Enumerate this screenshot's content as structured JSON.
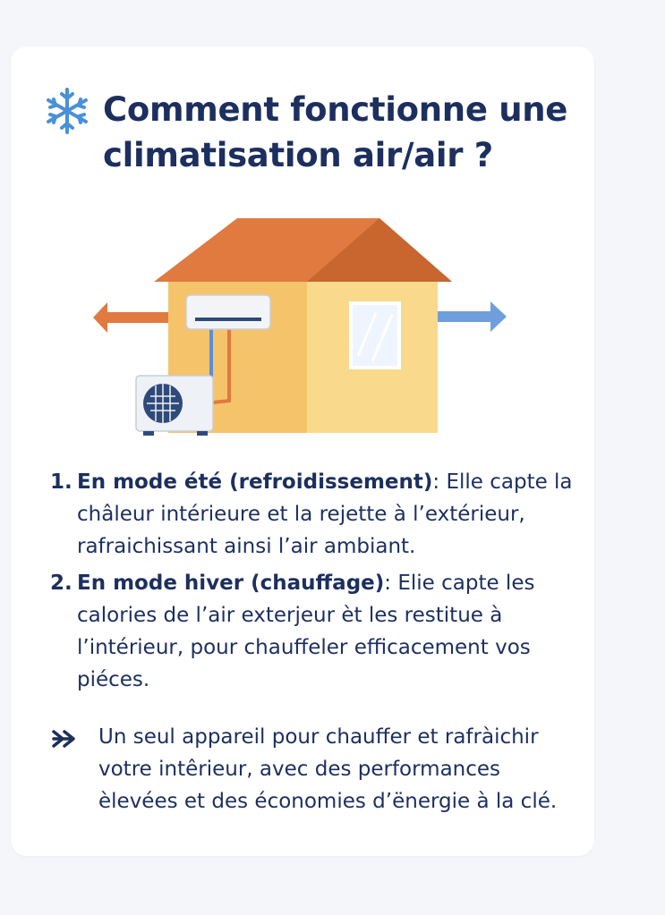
{
  "header": {
    "icon": "snowflake-icon",
    "title": "Comment fonctionne une climatisation air/air ?"
  },
  "illustration": {
    "subject": "house-with-air-conditioner",
    "colors": {
      "roof": "#e07a3f",
      "wall_left": "#f5c36a",
      "wall_right": "#f9d98c",
      "warm_arrow": "#e07a3f",
      "cool_arrow": "#6e9fdc",
      "indoor_unit": "#f2f4f7",
      "outdoor_unit": "#eef1f5",
      "fan": "#2e4a7a"
    }
  },
  "steps": [
    {
      "number": "1.",
      "mode": "En mode été (refroidissement)",
      "separator": ": ",
      "text": "Elle capte la châleur intérieure et la rejette à l’extérieur, rafraichissant ainsi l’air ambiant."
    },
    {
      "number": "2.",
      "mode": "En mode hiver (chauffage)",
      "separator": ":  ",
      "text": "Elie capte les calories de l’air exterjeur èt les restitue à l’intérieur, pour chauffeler efficacement vos piéces."
    }
  ],
  "callout": {
    "icon": "double-chevron-right-icon",
    "text": "Un seul appareil pour chauffer et rafràichir votre intêrieur, avec des performances èlevées et des économies d’ënergie à la clé."
  },
  "colors": {
    "text_primary": "#1c2f5e",
    "accent_blue": "#4a90d9",
    "card_background": "#ffffff",
    "page_background": "#f4f6fa"
  }
}
